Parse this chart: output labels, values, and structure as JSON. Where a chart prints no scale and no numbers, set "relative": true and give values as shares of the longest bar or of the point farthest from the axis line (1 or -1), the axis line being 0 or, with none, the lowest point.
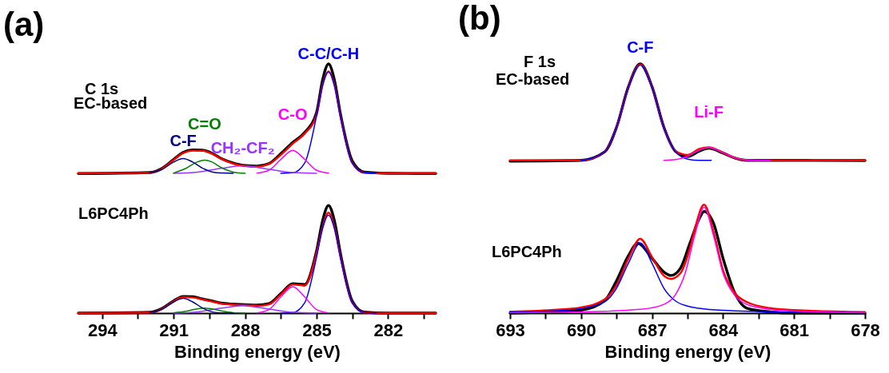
{
  "chart_data": [
    {
      "type": "line",
      "title": "(a)",
      "xlabel": "Binding energy (eV)",
      "relative": true,
      "tick_labels": "x",
      "xlim": [
        295,
        280
      ],
      "xticks": [
        294,
        {
          "value": 292.5,
          "label": null
        },
        291,
        {
          "value": 289.5,
          "label": null
        },
        288,
        {
          "value": 286.5,
          "label": null
        },
        285,
        {
          "value": 283.5,
          "label": null
        },
        282,
        {
          "value": 280.5,
          "label": null
        }
      ],
      "annotations": [
        "C 1s",
        "EC-based",
        "L6PC4Ph"
      ],
      "series": [
        {
          "color": "#000000",
          "x": [
            295,
            292,
            291.5,
            291,
            290.6,
            290.2,
            289.8,
            289.4,
            289,
            288.5,
            288,
            287.5,
            287,
            286.5,
            286,
            285.5,
            285,
            284.75,
            284.5,
            284.25,
            284,
            283.5,
            283,
            282,
            280
          ],
          "values": [
            0.56,
            0.564,
            0.58,
            0.617,
            0.645,
            0.655,
            0.654,
            0.642,
            0.62,
            0.602,
            0.592,
            0.59,
            0.6,
            0.64,
            0.685,
            0.725,
            0.805,
            0.935,
            1.0,
            0.935,
            0.8,
            0.61,
            0.566,
            0.561,
            0.56
          ]
        },
        {
          "color": "#ff0000",
          "x": [
            295,
            292,
            291.5,
            291,
            290.6,
            290.2,
            289.8,
            289.4,
            289,
            288.5,
            288,
            287.5,
            287,
            286.5,
            286,
            285.5,
            285,
            284.75,
            284.5,
            284.25,
            284,
            283.5,
            283,
            282,
            280
          ],
          "values": [
            0.561,
            0.563,
            0.578,
            0.615,
            0.642,
            0.652,
            0.652,
            0.64,
            0.619,
            0.6,
            0.59,
            0.588,
            0.598,
            0.635,
            0.68,
            0.72,
            0.795,
            0.915,
            0.97,
            0.915,
            0.792,
            0.602,
            0.563,
            0.561,
            0.561
          ]
        },
        {
          "name": "C-C/C-H",
          "color": "#0000ff",
          "x": [
            286.5,
            286,
            285.5,
            285,
            284.75,
            284.5,
            284.25,
            284,
            283.5,
            283,
            282.5
          ],
          "values": [
            0.561,
            0.563,
            0.602,
            0.792,
            0.914,
            0.967,
            0.914,
            0.792,
            0.602,
            0.563,
            0.561
          ]
        },
        {
          "name": "C-O",
          "color": "#ff00ff",
          "x": [
            287.5,
            287,
            286.5,
            286,
            285.5,
            285,
            284.5
          ],
          "values": [
            0.562,
            0.573,
            0.617,
            0.653,
            0.617,
            0.573,
            0.562
          ]
        },
        {
          "name": "CH₂-CF₂",
          "color": "#9933ff",
          "x": [
            291,
            290,
            289,
            288.1,
            287,
            286,
            285
          ],
          "values": [
            0.561,
            0.566,
            0.581,
            0.591,
            0.577,
            0.564,
            0.561
          ]
        },
        {
          "name": "C=O",
          "color": "#008000",
          "x": [
            291,
            290.5,
            290,
            289.7,
            289.4,
            289,
            288.5,
            288
          ],
          "values": [
            0.562,
            0.58,
            0.607,
            0.614,
            0.607,
            0.584,
            0.566,
            0.561
          ]
        },
        {
          "name": "C-F",
          "color": "#000080",
          "x": [
            292,
            291.5,
            291,
            290.6,
            290.2,
            289.8,
            289.2,
            288.5
          ],
          "values": [
            0.563,
            0.576,
            0.606,
            0.62,
            0.606,
            0.582,
            0.563,
            0.561
          ]
        },
        {
          "color": "#000000",
          "x": [
            295,
            292,
            291.5,
            291,
            290.6,
            290.2,
            289.8,
            289.4,
            289,
            288.5,
            288,
            287.5,
            287,
            286.5,
            286,
            285.5,
            285,
            284.75,
            284.5,
            284.25,
            284,
            283.5,
            283,
            282,
            280
          ],
          "values": [
            0,
            0.003,
            0.018,
            0.049,
            0.067,
            0.066,
            0.057,
            0.049,
            0.04,
            0.036,
            0.034,
            0.032,
            0.038,
            0.078,
            0.118,
            0.115,
            0.25,
            0.37,
            0.432,
            0.37,
            0.24,
            0.048,
            0.004,
            0,
            0
          ]
        },
        {
          "color": "#ff0000",
          "x": [
            295,
            292,
            291.5,
            291,
            290.6,
            290.2,
            289.8,
            289.4,
            289,
            288.5,
            288,
            287.5,
            287,
            286.5,
            286,
            285.5,
            285,
            284.75,
            284.5,
            284.25,
            284,
            283.5,
            283,
            282,
            280
          ],
          "values": [
            0,
            0.002,
            0.016,
            0.047,
            0.064,
            0.063,
            0.055,
            0.047,
            0.038,
            0.034,
            0.032,
            0.03,
            0.035,
            0.075,
            0.115,
            0.11,
            0.24,
            0.343,
            0.403,
            0.343,
            0.227,
            0.041,
            0.002,
            0,
            0
          ]
        },
        {
          "color": "#0000ff",
          "x": [
            286.5,
            286,
            285.5,
            285,
            284.75,
            284.5,
            284.25,
            284,
            283.5,
            283,
            282.5
          ],
          "values": [
            0,
            0.002,
            0.041,
            0.225,
            0.341,
            0.393,
            0.341,
            0.225,
            0.041,
            0.002,
            0
          ]
        },
        {
          "color": "#ff00ff",
          "x": [
            287.5,
            287,
            286.5,
            286,
            285.5,
            285,
            284.5
          ],
          "values": [
            0.001,
            0.014,
            0.065,
            0.106,
            0.065,
            0.014,
            0.001
          ]
        },
        {
          "color": "#9933ff",
          "x": [
            291,
            290,
            289,
            288.1,
            287,
            286,
            285
          ],
          "values": [
            0,
            0.005,
            0.02,
            0.03,
            0.016,
            0.003,
            0
          ]
        },
        {
          "color": "#008000",
          "x": [
            291,
            290.5,
            290,
            289.7,
            289.4,
            289,
            288.5,
            288
          ],
          "values": [
            0.001,
            0.007,
            0.017,
            0.02,
            0.017,
            0.009,
            0.002,
            0
          ]
        },
        {
          "color": "#000080",
          "x": [
            292,
            291.5,
            291,
            290.6,
            290.2,
            289.8,
            289.2,
            288.5
          ],
          "values": [
            0.002,
            0.015,
            0.045,
            0.059,
            0.045,
            0.021,
            0.002,
            0
          ]
        }
      ]
    },
    {
      "type": "line",
      "title": "(b)",
      "xlabel": "Binding energy (eV)",
      "relative": true,
      "tick_labels": "x",
      "xlim": [
        693,
        678
      ],
      "xticks": [
        693,
        {
          "value": 691.5,
          "label": null
        },
        690,
        {
          "value": 688.5,
          "label": null
        },
        687,
        {
          "value": 685.5,
          "label": null
        },
        684,
        {
          "value": 682.5,
          "label": null
        },
        681,
        {
          "value": 679.5,
          "label": null
        },
        678
      ],
      "annotations": [
        "F 1s",
        "EC-based",
        "L6PC4Ph"
      ],
      "series": [
        {
          "color": "#000000",
          "x": [
            693,
            690,
            689,
            688.5,
            688,
            687.5,
            687,
            686.5,
            686,
            685.5,
            685,
            684.6,
            684,
            683.5,
            683,
            682,
            678
          ],
          "values": [
            0.61,
            0.613,
            0.647,
            0.746,
            0.908,
            1.0,
            0.908,
            0.746,
            0.648,
            0.628,
            0.65,
            0.662,
            0.642,
            0.622,
            0.613,
            0.613,
            0.612
          ]
        },
        {
          "color": "#ff0000",
          "x": [
            693,
            690,
            689,
            688.5,
            688,
            687.5,
            687,
            686.5,
            686,
            685.5,
            685,
            684.6,
            684,
            683.5,
            683,
            682,
            678
          ],
          "values": [
            0.613,
            0.613,
            0.647,
            0.744,
            0.906,
            0.998,
            0.906,
            0.744,
            0.65,
            0.635,
            0.659,
            0.665,
            0.644,
            0.623,
            0.614,
            0.613,
            0.613
          ]
        },
        {
          "name": "C-F",
          "color": "#0000ff",
          "x": [
            690,
            689,
            688.5,
            688,
            687.5,
            687,
            686.5,
            686,
            685.5,
            685,
            684.5
          ],
          "values": [
            0.613,
            0.647,
            0.744,
            0.906,
            0.995,
            0.906,
            0.744,
            0.647,
            0.618,
            0.613,
            0.613
          ]
        },
        {
          "name": "Li-F",
          "color": "#ff00ff",
          "x": [
            686.5,
            686,
            685.5,
            685,
            684.6,
            684,
            683.5,
            683,
            682
          ],
          "values": [
            0.613,
            0.616,
            0.629,
            0.654,
            0.664,
            0.644,
            0.623,
            0.614,
            0.613
          ]
        },
        {
          "color": "#000000",
          "x": [
            693,
            691,
            690,
            689,
            688.5,
            688,
            687.6,
            687,
            686.5,
            686.2,
            685.8,
            685.4,
            685,
            684.8,
            684.4,
            684,
            683.5,
            683,
            682,
            681,
            678
          ],
          "values": [
            0,
            0.006,
            0.012,
            0.05,
            0.13,
            0.23,
            0.28,
            0.22,
            0.165,
            0.151,
            0.18,
            0.28,
            0.38,
            0.408,
            0.36,
            0.22,
            0.08,
            0.02,
            0.005,
            0,
            0
          ]
        },
        {
          "color": "#ff0000",
          "x": [
            693,
            691,
            690,
            689,
            688.5,
            688,
            687.5,
            687,
            686.5,
            686.2,
            685.8,
            685.4,
            685.2,
            684.8,
            684.4,
            684,
            683.5,
            683,
            682,
            681,
            678
          ],
          "values": [
            0.006,
            0.014,
            0.023,
            0.055,
            0.112,
            0.218,
            0.298,
            0.225,
            0.15,
            0.137,
            0.16,
            0.26,
            0.335,
            0.435,
            0.325,
            0.172,
            0.08,
            0.045,
            0.02,
            0.012,
            0.004
          ]
        },
        {
          "color": "#0000ff",
          "x": [
            693,
            691,
            690,
            689,
            688.5,
            688,
            687.5,
            687,
            686.5,
            686,
            685.5,
            685,
            684,
            681,
            678
          ],
          "values": [
            0.004,
            0.01,
            0.018,
            0.045,
            0.1,
            0.2,
            0.281,
            0.2,
            0.1,
            0.048,
            0.028,
            0.019,
            0.011,
            0.004,
            0.002
          ]
        },
        {
          "color": "#ff00ff",
          "x": [
            693,
            690,
            687.5,
            686.5,
            686,
            685.6,
            685.2,
            684.8,
            684.4,
            684,
            683.5,
            683,
            682,
            681,
            678
          ],
          "values": [
            0.002,
            0.005,
            0.015,
            0.035,
            0.075,
            0.16,
            0.31,
            0.425,
            0.31,
            0.16,
            0.07,
            0.035,
            0.015,
            0.008,
            0.002
          ]
        }
      ]
    }
  ]
}
